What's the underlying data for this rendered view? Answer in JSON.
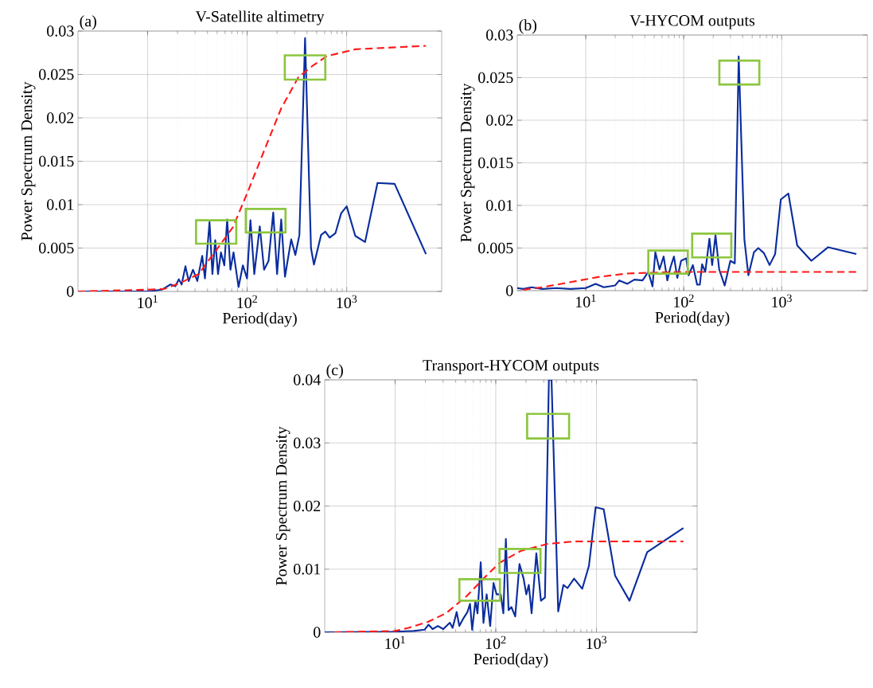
{
  "chart_data": [
    {
      "type": "line",
      "title": "V-Satellite altimetry",
      "annotations": [
        "(a)"
      ],
      "xlabel": "Period(day)",
      "ylabel": "Power Spectrum Density",
      "log": "x",
      "grid": true,
      "xlim": [
        2,
        9000
      ],
      "ylim": [
        0,
        0.03
      ],
      "xticks": [
        {
          "value": 10,
          "label": "10$^{1}$"
        },
        {
          "value": 100,
          "label": "10$^{2}$"
        },
        {
          "value": 1000,
          "label": "10$^{3}$"
        }
      ],
      "yticks": [
        0,
        0.005,
        0.01,
        0.015,
        0.02,
        0.025,
        0.03
      ],
      "series": [
        {
          "color": "#0a2d9e",
          "line_style": "solid",
          "x": [
            2,
            10,
            13.9,
            17,
            19,
            20.6,
            22,
            24,
            25.9,
            28.6,
            31.6,
            35.4,
            37.7,
            41.9,
            44.8,
            47.8,
            51,
            54.6,
            59,
            63,
            68,
            73,
            82,
            90.6,
            99.8,
            108,
            118,
            134,
            148,
            164,
            183,
            200,
            220,
            240,
            277,
            305,
            335,
            382,
            438,
            469,
            553,
            610,
            675,
            770,
            880,
            1000,
            1220,
            1530,
            2040,
            3030,
            6260
          ],
          "values": [
            0,
            0,
            0.0002,
            0.0008,
            0.0006,
            0.0014,
            0.0008,
            0.0029,
            0.0012,
            0.0025,
            0.0012,
            0.0041,
            0.0015,
            0.008,
            0.002,
            0.0059,
            0.002,
            0.0045,
            0.003,
            0.0083,
            0.0025,
            0.0045,
            0.0005,
            0.003,
            0.0015,
            0.0082,
            0.002,
            0.0075,
            0.0025,
            0.0035,
            0.0091,
            0.002,
            0.0083,
            0.0017,
            0.006,
            0.0042,
            0.0065,
            0.0292,
            0.005,
            0.0031,
            0.0065,
            0.0069,
            0.0062,
            0.0067,
            0.009,
            0.0098,
            0.0064,
            0.0057,
            0.0125,
            0.0124,
            0.0043
          ]
        },
        {
          "color": "#ff1a1a",
          "line_style": "dashed",
          "x": [
            2,
            10,
            14.8,
            20.6,
            32.6,
            48.5,
            72,
            100,
            148,
            220,
            328,
            455,
            630,
            1220,
            6260
          ],
          "values": [
            0,
            0.0002,
            0.0003,
            0.0009,
            0.002,
            0.0047,
            0.0074,
            0.0113,
            0.0162,
            0.0211,
            0.0247,
            0.026,
            0.0271,
            0.0279,
            0.0283
          ]
        }
      ]
    },
    {
      "type": "line",
      "title": "V-HYCOM outputs",
      "annotations": [
        "(b)"
      ],
      "xlabel": "Period(day)",
      "ylabel": "Power Spectrum Density",
      "log": "x",
      "grid": true,
      "xlim": [
        2,
        7500
      ],
      "ylim": [
        0,
        0.03
      ],
      "xticks": [
        {
          "value": 10,
          "label": "10$^{1}$"
        },
        {
          "value": 100,
          "label": "10$^{2}$"
        },
        {
          "value": 1000,
          "label": "10$^{3}$"
        }
      ],
      "yticks": [
        0,
        0.005,
        0.01,
        0.015,
        0.02,
        0.025,
        0.03
      ],
      "series": [
        {
          "color": "#0a2d9e",
          "line_style": "solid",
          "x": [
            2,
            2.3,
            2.8,
            3.6,
            5,
            7,
            10,
            12.6,
            15.3,
            19.9,
            22,
            26.6,
            31.4,
            38,
            43.5,
            48,
            51.3,
            56.6,
            62.4,
            68,
            73.5,
            79.5,
            86,
            94,
            106,
            112,
            124,
            137,
            146,
            154,
            166,
            183,
            195,
            211,
            230,
            262,
            299,
            332,
            364,
            416,
            457,
            521,
            577,
            659,
            752,
            857,
            979,
            1170,
            1440,
            2010,
            2980,
            5780
          ],
          "values": [
            0.0003,
            0.0002,
            0.0004,
            0.0002,
            0.0003,
            0.0002,
            0.0003,
            0.0008,
            0.0004,
            0.0006,
            0.0012,
            0.0008,
            0.0013,
            0.0012,
            0.0022,
            0.0005,
            0.0045,
            0.0025,
            0.004,
            0.0012,
            0.0028,
            0.004,
            0.0015,
            0.0035,
            0.0038,
            0.0018,
            0.003,
            0.0007,
            0.0007,
            0.0031,
            0.0022,
            0.0061,
            0.003,
            0.0065,
            0.0025,
            0.0006,
            0.0035,
            0.0032,
            0.0275,
            0.006,
            0.0018,
            0.0045,
            0.005,
            0.0044,
            0.003,
            0.0043,
            0.0107,
            0.0114,
            0.0053,
            0.0035,
            0.0051,
            0.0043
          ]
        },
        {
          "color": "#ff1a1a",
          "line_style": "dashed",
          "x": [
            2.3,
            3.6,
            7,
            13.4,
            25.8,
            43.5,
            95,
            5780
          ],
          "values": [
            0.0001,
            0.0004,
            0.001,
            0.0016,
            0.002,
            0.0021,
            0.0022,
            0.0022
          ]
        }
      ]
    },
    {
      "type": "line",
      "title": "Transport-HYCOM outputs",
      "annotations": [
        "(c)"
      ],
      "xlabel": "Period(day)",
      "ylabel": "Power Spectrum Density",
      "log": "x",
      "grid": true,
      "xlim": [
        2,
        10000
      ],
      "ylim": [
        0,
        0.04
      ],
      "xticks": [
        {
          "value": 10,
          "label": "10$^{1}$"
        },
        {
          "value": 100,
          "label": "10$^{2}$"
        },
        {
          "value": 1000,
          "label": "10$^{3}$"
        }
      ],
      "yticks": [
        0,
        0.01,
        0.02,
        0.03,
        0.04
      ],
      "series": [
        {
          "color": "#0a2d9e",
          "line_style": "solid",
          "x": [
            2,
            10,
            15.3,
            19.6,
            21.5,
            23.6,
            26.6,
            30.1,
            35,
            37.3,
            40.9,
            43.5,
            47.7,
            52.3,
            55.5,
            58.3,
            62.8,
            65.9,
            70.9,
            75.5,
            81.2,
            88,
            95,
            102,
            112,
            119,
            126,
            134,
            143,
            156,
            172,
            189,
            201,
            213,
            227,
            253,
            281,
            308,
            337,
            358,
            417,
            470,
            516,
            600,
            723,
            842,
            981,
            1180,
            1530,
            2130,
            3190,
            7300
          ],
          "values": [
            0,
            0.0001,
            0.0002,
            0.0004,
            0.0012,
            0.0005,
            0.001,
            0.0005,
            0.0015,
            0.0007,
            0.0032,
            0.001,
            0.0022,
            0.0032,
            0.0045,
            0.0004,
            0.005,
            0.003,
            0.0111,
            0.0015,
            0.006,
            0.001,
            0.0078,
            0.006,
            0.006,
            0.003,
            0.0148,
            0.0035,
            0.004,
            0.0025,
            0.0108,
            0.0085,
            0.006,
            0.0075,
            0.003,
            0.0125,
            0.005,
            0.0055,
            0.04,
            0.04,
            0.0033,
            0.0075,
            0.007,
            0.0085,
            0.0069,
            0.0105,
            0.0198,
            0.0195,
            0.009,
            0.005,
            0.0127,
            0.0165
          ]
        },
        {
          "color": "#ff1a1a",
          "line_style": "dashed",
          "x": [
            2.5,
            10,
            13.6,
            20.9,
            32,
            52,
            75.5,
            109,
            178,
            328,
            608,
            7300
          ],
          "values": [
            0,
            0.0002,
            0.0007,
            0.0016,
            0.003,
            0.0058,
            0.0085,
            0.011,
            0.0129,
            0.014,
            0.0144,
            0.0144
          ]
        }
      ]
    }
  ]
}
